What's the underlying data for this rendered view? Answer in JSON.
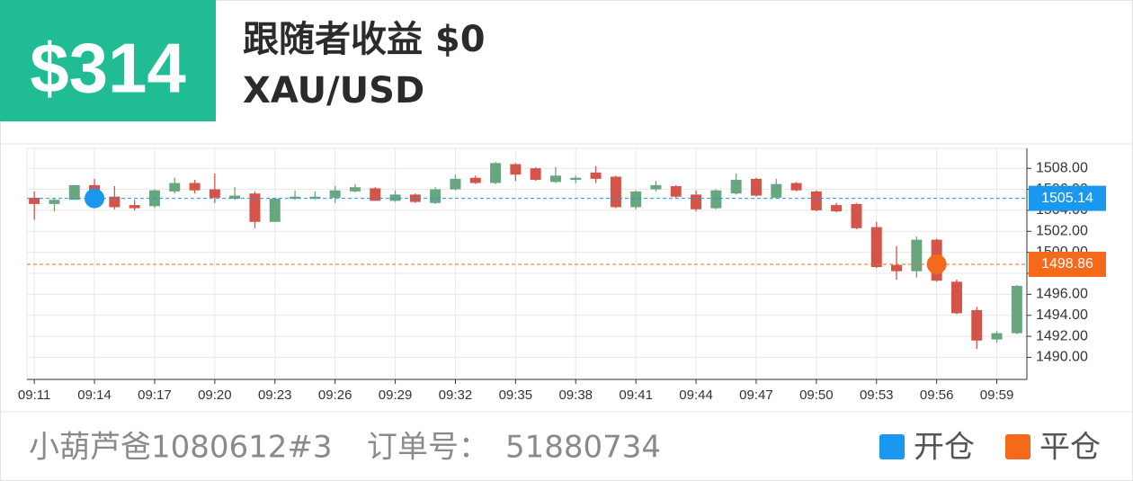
{
  "header": {
    "amount": "$314",
    "title": "跟随者收益 $0",
    "symbol": "XAU/USD"
  },
  "chart_data": {
    "type": "candlestick",
    "categories": [
      "09:11",
      null,
      null,
      "09:14",
      null,
      null,
      "09:17",
      null,
      null,
      "09:20",
      null,
      null,
      "09:23",
      null,
      null,
      "09:26",
      null,
      null,
      "09:29",
      null,
      null,
      "09:32",
      null,
      null,
      "09:35",
      null,
      null,
      "09:38",
      null,
      null,
      "09:41",
      null,
      null,
      "09:44",
      null,
      null,
      "09:47",
      null,
      null,
      "09:50",
      null,
      null,
      "09:53",
      null,
      null,
      "09:56",
      null,
      null,
      "09:59",
      null
    ],
    "open": [
      1505.2,
      1504.6,
      1505.0,
      1506.4,
      1505.3,
      1504.5,
      1504.4,
      1505.8,
      1506.6,
      1506.0,
      1505.1,
      1505.6,
      1502.9,
      1505.1,
      1505.1,
      1505.2,
      1505.8,
      1506.1,
      1504.9,
      1505.5,
      1504.7,
      1506.0,
      1507.1,
      1506.6,
      1508.4,
      1508.0,
      1506.7,
      1506.9,
      1507.6,
      1507.2,
      1504.3,
      1506.0,
      1506.3,
      1505.5,
      1504.2,
      1505.6,
      1507.0,
      1505.2,
      1506.6,
      1505.8,
      1504.5,
      1504.6,
      1502.4,
      1498.8,
      1498.2,
      1501.2,
      1497.2,
      1494.5,
      1491.7,
      1492.3
    ],
    "high": [
      1505.8,
      1505.1,
      1506.4,
      1507.0,
      1506.3,
      1505.0,
      1506.0,
      1507.1,
      1506.9,
      1507.5,
      1506.2,
      1505.8,
      1505.2,
      1505.9,
      1505.8,
      1506.3,
      1506.5,
      1506.2,
      1505.9,
      1505.6,
      1506.2,
      1507.4,
      1507.3,
      1508.6,
      1508.5,
      1508.1,
      1508.1,
      1507.3,
      1508.2,
      1507.3,
      1505.9,
      1506.8,
      1506.4,
      1505.9,
      1506.0,
      1507.5,
      1507.1,
      1507.0,
      1506.7,
      1505.9,
      1504.7,
      1504.7,
      1502.9,
      1500.6,
      1501.5,
      1501.3,
      1497.4,
      1494.8,
      1492.5,
      1496.9
    ],
    "low": [
      1503.1,
      1503.9,
      1505.0,
      1505.5,
      1504.1,
      1504.0,
      1504.2,
      1505.6,
      1505.6,
      1504.7,
      1505.0,
      1502.3,
      1502.9,
      1505.0,
      1505.0,
      1504.7,
      1505.7,
      1504.9,
      1504.8,
      1504.7,
      1504.6,
      1505.9,
      1506.5,
      1506.5,
      1506.8,
      1506.8,
      1506.6,
      1506.6,
      1506.6,
      1504.2,
      1504.1,
      1505.8,
      1505.2,
      1503.9,
      1504.1,
      1505.5,
      1505.3,
      1505.1,
      1505.8,
      1503.9,
      1503.8,
      1502.2,
      1498.5,
      1497.4,
      1497.6,
      1497.2,
      1494.1,
      1490.8,
      1491.4,
      1492.2
    ],
    "close": [
      1504.6,
      1505.0,
      1506.4,
      1505.8,
      1504.3,
      1504.2,
      1505.9,
      1506.6,
      1505.9,
      1505.2,
      1505.4,
      1502.9,
      1505.1,
      1505.3,
      1505.3,
      1505.9,
      1506.2,
      1504.9,
      1505.5,
      1504.8,
      1506.0,
      1507.0,
      1506.6,
      1508.5,
      1507.4,
      1506.9,
      1507.3,
      1507.1,
      1507.0,
      1504.3,
      1505.8,
      1506.4,
      1505.3,
      1504.1,
      1505.9,
      1506.9,
      1505.4,
      1506.5,
      1505.9,
      1504.0,
      1503.9,
      1502.3,
      1498.6,
      1498.2,
      1501.2,
      1497.3,
      1494.2,
      1491.6,
      1492.3,
      1496.8
    ],
    "up_color": "#68a67f",
    "down_color": "#d4544a",
    "ylim": [
      1487.9,
      1509.9
    ],
    "yticks": [
      {
        "value": 1490,
        "label": "1490.00"
      },
      {
        "value": 1492,
        "label": "1492.00"
      },
      {
        "value": 1494,
        "label": "1494.00"
      },
      {
        "value": 1496,
        "label": "1496.00"
      },
      {
        "value": 1498,
        "label": "1498.00"
      },
      {
        "value": 1500,
        "label": "1500.00"
      },
      {
        "value": 1502,
        "label": "1502.00"
      },
      {
        "value": 1504,
        "label": "1504.00"
      },
      {
        "value": 1506,
        "label": "1506.00"
      },
      {
        "value": 1508,
        "label": "1508.00"
      }
    ],
    "grid": true,
    "markers": [
      {
        "name": "开仓",
        "x": "09:14",
        "value": 1505.14,
        "color": "#1a98f0"
      },
      {
        "name": "平仓",
        "x": "09:56",
        "value": 1498.86,
        "color": "#f56a1a"
      }
    ]
  },
  "footer": {
    "account": "小葫芦爸1080612#3",
    "order_label": "订单号：",
    "order_no": "51880734"
  }
}
